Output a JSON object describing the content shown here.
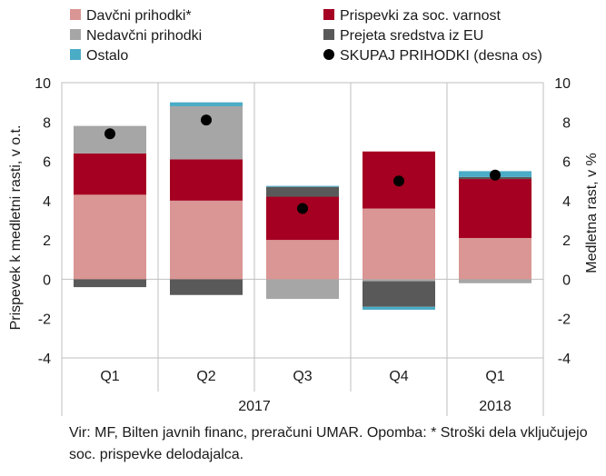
{
  "chart_data": {
    "type": "bar",
    "stacked": true,
    "categories": [
      "Q1",
      "Q2",
      "Q3",
      "Q4",
      "Q1"
    ],
    "year_groups": [
      {
        "label": "2017",
        "categories": [
          "Q1",
          "Q2",
          "Q3",
          "Q4"
        ]
      },
      {
        "label": "2018",
        "categories": [
          "Q1"
        ]
      }
    ],
    "series": [
      {
        "name": "Davčni prihodki*",
        "color": "#d99694",
        "values": [
          4.3,
          4.0,
          2.0,
          3.6,
          2.1
        ]
      },
      {
        "name": "Prispevki za soc. varnost",
        "color": "#a50021",
        "values": [
          2.1,
          2.1,
          2.2,
          2.9,
          3.0
        ]
      },
      {
        "name": "Nedavčni prihodki",
        "color": "#a6a6a6",
        "values": [
          1.4,
          2.7,
          -1.0,
          -0.1,
          -0.2
        ]
      },
      {
        "name": "Prejeta sredstva iz EU",
        "color": "#595959",
        "values": [
          -0.4,
          -0.8,
          0.5,
          -1.3,
          0.1
        ]
      },
      {
        "name": "Ostalo",
        "color": "#4bacc6",
        "values": [
          0.0,
          0.2,
          0.05,
          -0.15,
          0.3
        ]
      }
    ],
    "total_series": {
      "name": "SKUPAJ PRIHODKI (desna os)",
      "color": "#000000",
      "values": [
        7.4,
        8.1,
        3.6,
        5.0,
        5.3
      ]
    },
    "ylabel": "Prispevek k medletni rasti, v o.t.",
    "y2label": "Medletna rast, v %",
    "ylim": [
      -4,
      10
    ],
    "y2lim": [
      -4,
      10
    ],
    "yticks": [
      -4,
      -2,
      0,
      2,
      4,
      6,
      8,
      10
    ],
    "grid": true,
    "legend_position": "top"
  },
  "note": "Vir: MF, Bilten javnih financ, preračuni UMAR. Opomba: * Stroški dela vključujejo soc. prispevke delodajalca."
}
